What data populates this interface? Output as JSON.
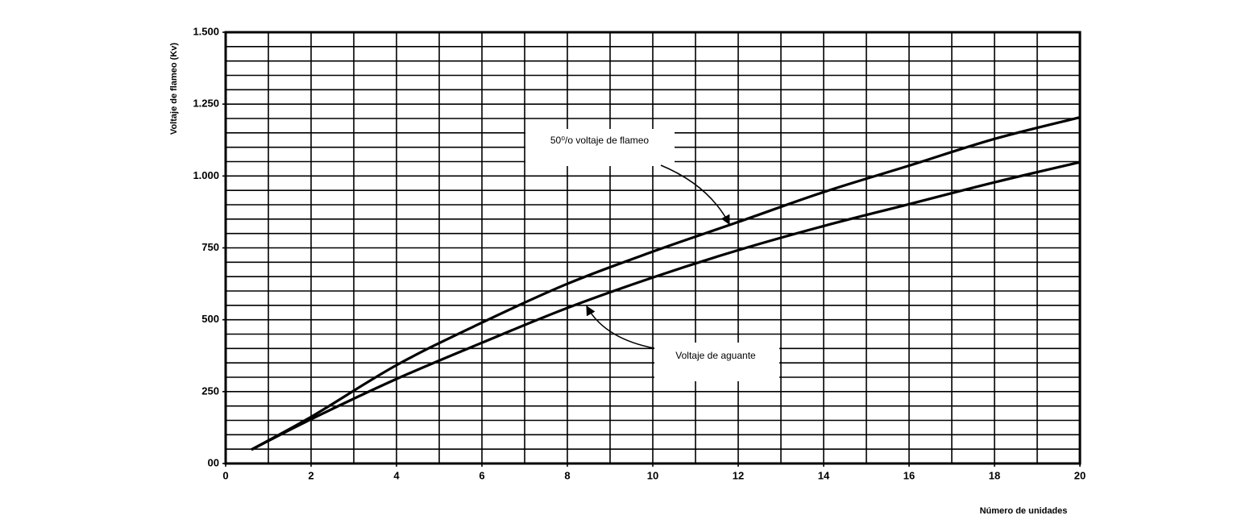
{
  "chart_data": {
    "type": "line",
    "y_label": "Voltaje de flameo (Kv)",
    "x_label": "Número de unidades",
    "x": [
      0.6,
      2,
      4,
      6,
      8,
      10,
      12,
      14,
      16,
      18,
      20
    ],
    "series": [
      {
        "name": "50⁰/o voltaje de flameo",
        "color": "#000000",
        "values": [
          48,
          162,
          342,
          490,
          625,
          737,
          840,
          944,
          1036,
          1129,
          1204
        ]
      },
      {
        "name": "Voltaje de aguante",
        "color": "#000000",
        "values": [
          48,
          154,
          294,
          420,
          541,
          647,
          742,
          826,
          902,
          978,
          1048
        ]
      }
    ],
    "xlim": [
      0,
      20
    ],
    "xticks": [
      0,
      2,
      4,
      6,
      8,
      10,
      12,
      14,
      16,
      18,
      20
    ],
    "ylim": [
      0,
      1500
    ],
    "yticks": [
      {
        "value": 0,
        "label": "00"
      },
      250,
      500,
      750,
      {
        "value": 1000,
        "label": "1.000"
      },
      {
        "value": 1250,
        "label": "1.250"
      },
      {
        "value": 1500,
        "label": "1.500"
      }
    ],
    "grid": true,
    "xgrid_step": 1,
    "ygrid_step": 50
  }
}
